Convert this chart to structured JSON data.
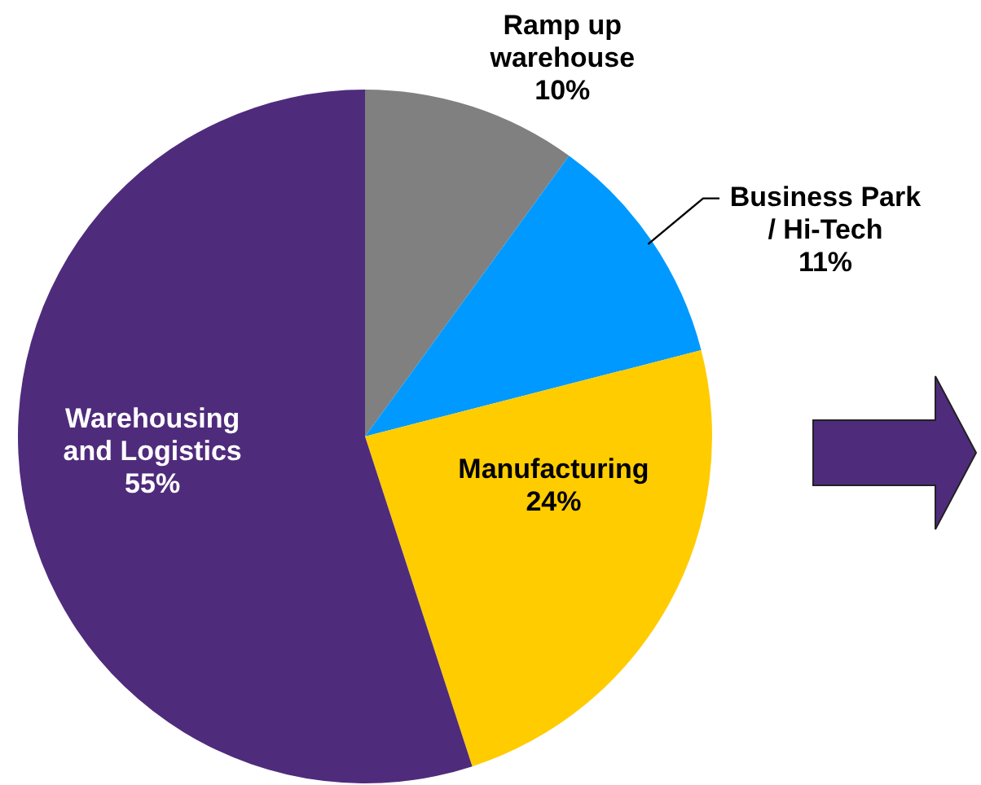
{
  "chart_data": {
    "type": "pie",
    "categories": [
      "Ramp up warehouse",
      "Business Park / Hi-Tech",
      "Manufacturing",
      "Warehousing and Logistics"
    ],
    "values": [
      10,
      11,
      24,
      55
    ],
    "colors": [
      "#808080",
      "#0099ff",
      "#ffcc00",
      "#4f2b7c"
    ],
    "value_labels": [
      "10%",
      "11%",
      "24%",
      "55%"
    ],
    "legend": false
  }
}
